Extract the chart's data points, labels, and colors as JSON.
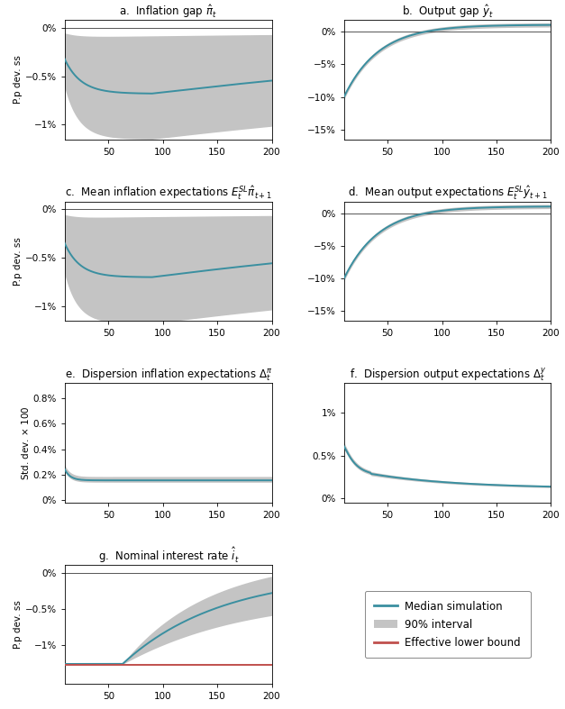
{
  "T": 200,
  "titles": [
    "a.  Inflation gap $\\hat{\\pi}_t$",
    "b.  Output gap $\\hat{y}_t$",
    "c.  Mean inflation expectations $E_t^{SL}\\hat{\\pi}_{t+1}$",
    "d.  Mean output expectations $E_t^{SL}\\hat{y}_{t+1}$",
    "e.  Dispersion inflation expectations $\\Delta_t^{\\pi}$",
    "f.  Dispersion output expectations $\\Delta_t^{y}$",
    "g.  Nominal interest rate $\\hat{i}_t$"
  ],
  "blue_color": "#3a8fa0",
  "gray_color": "#b0b0b0",
  "red_color": "#c0504d",
  "legend_labels": [
    "Median simulation",
    "90% interval",
    "Effective lower bound"
  ],
  "panels": {
    "a": {
      "ylim": [
        -1.15,
        0.08
      ],
      "yticks": [
        0.0,
        -0.5,
        -1.0
      ],
      "ytick_labels": [
        "0%",
        "−0.5%",
        "−1%"
      ],
      "hline": 0.0
    },
    "b": {
      "ylim": [
        -16.5,
        1.8
      ],
      "yticks": [
        0,
        -5,
        -10,
        -15
      ],
      "ytick_labels": [
        "0%",
        "−5%",
        "−10%",
        "−15%"
      ],
      "hline": 0.0
    },
    "c": {
      "ylim": [
        -1.15,
        0.08
      ],
      "yticks": [
        0.0,
        -0.5,
        -1.0
      ],
      "ytick_labels": [
        "0%",
        "−0.5%",
        "−1%"
      ],
      "hline": 0.0
    },
    "d": {
      "ylim": [
        -16.5,
        1.8
      ],
      "yticks": [
        0,
        -5,
        -10,
        -15
      ],
      "ytick_labels": [
        "0%",
        "−5%",
        "−10%",
        "−15%"
      ],
      "hline": 0.0
    },
    "e": {
      "ylim": [
        -0.02,
        0.92
      ],
      "yticks": [
        0.0,
        0.2,
        0.4,
        0.6,
        0.8
      ],
      "ytick_labels": [
        "0%",
        "0.2%",
        "0.4%",
        "0.6%",
        "0.8%"
      ],
      "hline": null
    },
    "f": {
      "ylim": [
        -0.05,
        1.35
      ],
      "yticks": [
        0.0,
        0.5,
        1.0
      ],
      "ytick_labels": [
        "0%",
        "0.5%",
        "1%"
      ],
      "hline": null
    },
    "g": {
      "ylim": [
        -1.55,
        0.12
      ],
      "yticks": [
        0.0,
        -0.5,
        -1.0
      ],
      "ytick_labels": [
        "0%",
        "−0.5%",
        "−1%"
      ],
      "hline": 0.0,
      "elb": -1.28
    }
  }
}
